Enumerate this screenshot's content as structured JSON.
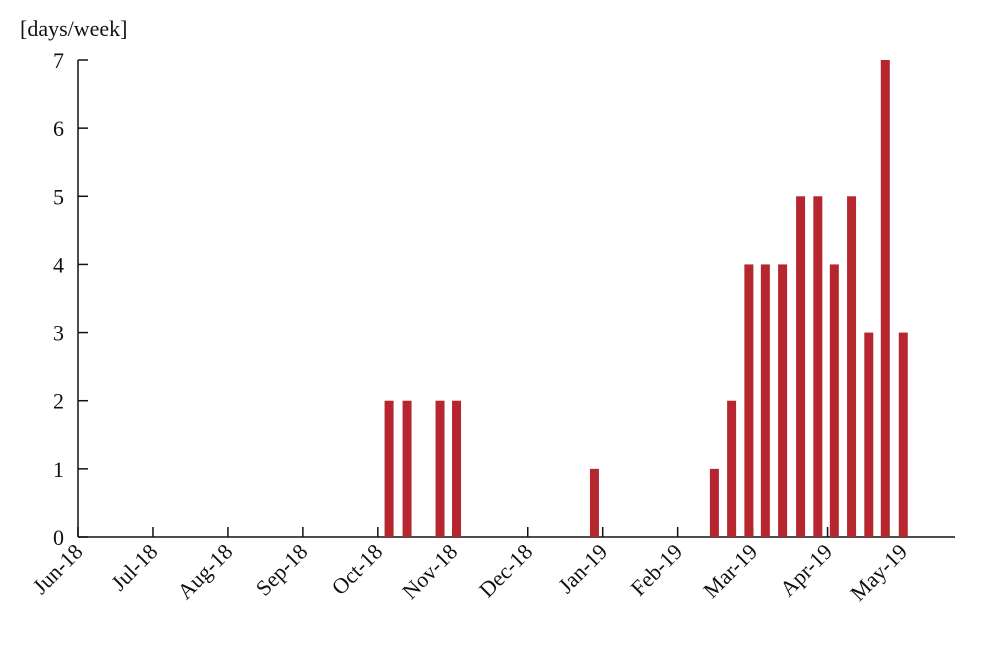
{
  "chart_data": {
    "type": "bar",
    "y_axis_label": "[days/week]",
    "x": [
      4.15,
      4.39,
      4.83,
      5.05,
      6.89,
      8.49,
      8.72,
      8.95,
      9.17,
      9.4,
      9.64,
      9.87,
      10.09,
      10.32,
      10.55,
      10.77,
      11.01
    ],
    "values": [
      2,
      2,
      2,
      2,
      1,
      1,
      2,
      4,
      4,
      4,
      5,
      5,
      4,
      5,
      3,
      7,
      3
    ],
    "color": "#b5262f",
    "xlim": [
      0,
      11.7
    ],
    "xticks": [
      {
        "value": 0,
        "label": "Jun-18"
      },
      {
        "value": 1,
        "label": "Jul-18"
      },
      {
        "value": 2,
        "label": "Aug-18"
      },
      {
        "value": 3,
        "label": "Sep-18"
      },
      {
        "value": 4,
        "label": "Oct-18"
      },
      {
        "value": 5,
        "label": "Nov-18"
      },
      {
        "value": 6,
        "label": "Dec-18"
      },
      {
        "value": 7,
        "label": "Jan-19"
      },
      {
        "value": 8,
        "label": "Feb-19"
      },
      {
        "value": 9,
        "label": "Mar-19"
      },
      {
        "value": 10,
        "label": "Apr-19"
      },
      {
        "value": 11,
        "label": "May-19"
      }
    ],
    "ylim": [
      0,
      7
    ],
    "yticks": [
      0,
      1,
      2,
      3,
      4,
      5,
      6,
      7
    ],
    "grid": false
  }
}
